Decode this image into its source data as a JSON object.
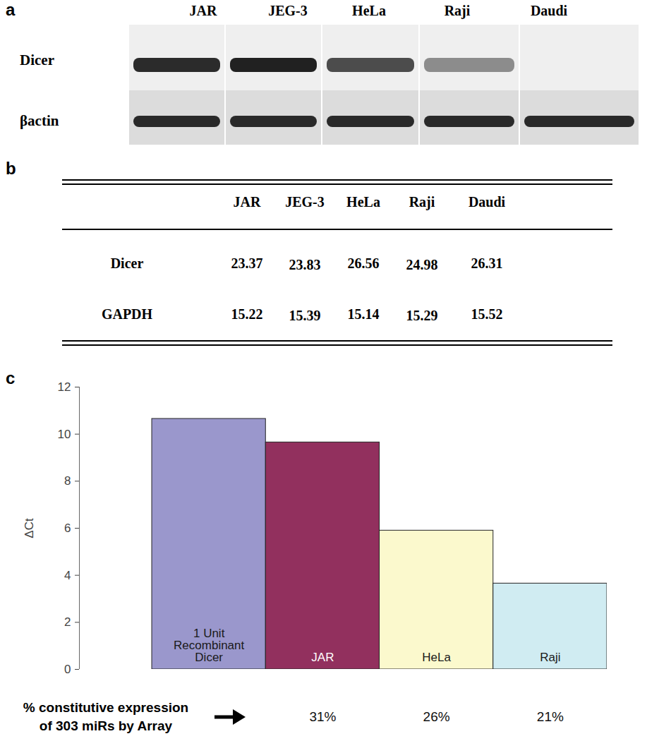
{
  "panel_a": {
    "panel_label": "a",
    "lanes": [
      "JAR",
      "JEG-3",
      "HeLa",
      "Raji",
      "Daudi"
    ],
    "rows": [
      {
        "name": "Dicer",
        "band_intensity": [
          0.9,
          0.95,
          0.75,
          0.45,
          0
        ]
      },
      {
        "name": "βactin",
        "band_intensity": [
          0.9,
          0.9,
          0.9,
          0.9,
          0.9
        ]
      }
    ]
  },
  "panel_b": {
    "panel_label": "b",
    "columns": [
      "JAR",
      "JEG-3",
      "HeLa",
      "Raji",
      "Daudi"
    ],
    "rows": [
      {
        "name": "Dicer",
        "values": [
          23.37,
          23.83,
          26.56,
          24.98,
          26.31
        ]
      },
      {
        "name": "GAPDH",
        "values": [
          15.22,
          15.39,
          15.14,
          15.29,
          15.52
        ]
      }
    ]
  },
  "chart_data": {
    "panel_label": "c",
    "type": "bar",
    "ylabel": "ΔCt",
    "categories": [
      "1 Unit\nRecombinant\nDicer",
      "JAR",
      "HeLa",
      "Raji"
    ],
    "values": [
      10.65,
      9.65,
      5.9,
      3.65
    ],
    "colors": [
      "#9a97cc",
      "#92305e",
      "#fbf9cd",
      "#d0ecf2"
    ],
    "ylim": [
      0,
      12
    ],
    "yticks": [
      0,
      2,
      4,
      6,
      8,
      10,
      12
    ],
    "grid": false,
    "tick_labels": "y",
    "constitutive_expression": {
      "title": [
        "% constitutive expression",
        "of 303 miRs by Array"
      ],
      "values": [
        null,
        31,
        26,
        21
      ],
      "value_labels": [
        null,
        "31%",
        "26%",
        "21%"
      ]
    }
  }
}
